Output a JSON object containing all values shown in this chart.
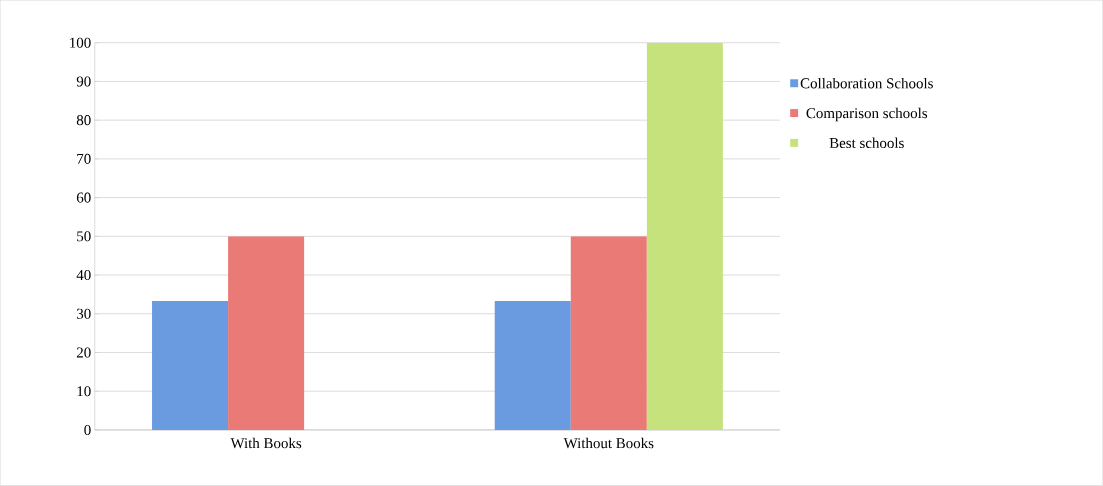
{
  "chart_data": {
    "type": "bar",
    "categories": [
      "With Books",
      "Without Books"
    ],
    "series": [
      {
        "name": "Collaboration Schools",
        "color": "#6a9ae0",
        "values": [
          33.3,
          33.3
        ]
      },
      {
        "name": "Comparison schools",
        "color": "#ea7a76",
        "values": [
          50,
          50
        ]
      },
      {
        "name": "Best schools",
        "color": "#c6e27c",
        "values": [
          null,
          100
        ]
      }
    ],
    "ylim": [
      0,
      100
    ],
    "yticks": [
      0,
      10,
      20,
      30,
      40,
      50,
      60,
      70,
      80,
      90,
      100
    ],
    "grid": "y",
    "legend": "right"
  }
}
